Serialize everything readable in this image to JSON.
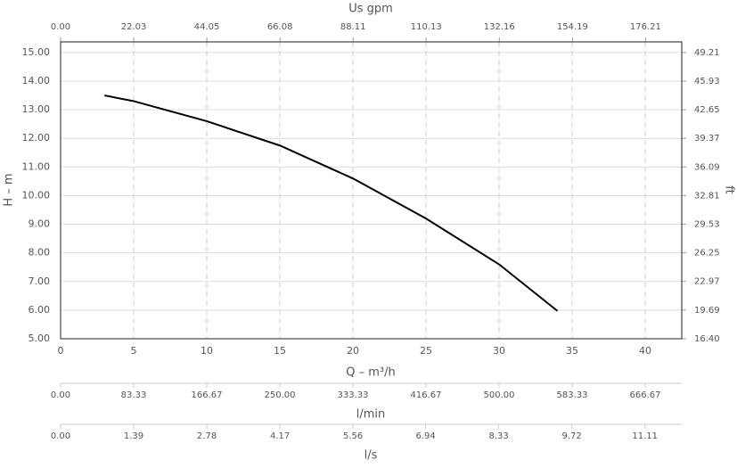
{
  "chart_data": {
    "type": "line",
    "x": [
      3,
      5,
      10,
      15,
      20,
      25,
      30,
      34
    ],
    "values": [
      13.5,
      13.3,
      12.6,
      11.75,
      10.6,
      9.2,
      7.6,
      5.97
    ],
    "color": "#000000",
    "grid": true,
    "xlabel": "Q – m³/h",
    "ylabel": "H – m",
    "xlim": [
      0,
      42.5
    ],
    "xticks": [
      0,
      5,
      10,
      15,
      20,
      25,
      30,
      35,
      40
    ],
    "ylim": [
      5,
      15.37
    ],
    "yticks": [
      {
        "value": 5,
        "label": "5.00"
      },
      {
        "value": 6,
        "label": "6.00"
      },
      {
        "value": 7,
        "label": "7.00"
      },
      {
        "value": 8,
        "label": "8.00"
      },
      {
        "value": 9,
        "label": "9.00"
      },
      {
        "value": 10,
        "label": "10.00"
      },
      {
        "value": 11,
        "label": "11.00"
      },
      {
        "value": 12,
        "label": "12.00"
      },
      {
        "value": 13,
        "label": "13.00"
      },
      {
        "value": 14,
        "label": "14.00"
      },
      {
        "value": 15,
        "label": "15.00"
      }
    ],
    "y2label": "ft",
    "y2lim": [
      16.4,
      50.43
    ],
    "y2ticks": [
      {
        "value": 16.4,
        "label": "16.40"
      },
      {
        "value": 19.69,
        "label": "19.69"
      },
      {
        "value": 22.97,
        "label": "22.97"
      },
      {
        "value": 26.25,
        "label": "26.25"
      },
      {
        "value": 29.53,
        "label": "29.53"
      },
      {
        "value": 32.81,
        "label": "32.81"
      },
      {
        "value": 36.09,
        "label": "36.09"
      },
      {
        "value": 39.37,
        "label": "39.37"
      },
      {
        "value": 42.65,
        "label": "42.65"
      },
      {
        "value": 45.93,
        "label": "45.93"
      },
      {
        "value": 49.21,
        "label": "49.21"
      }
    ],
    "top_axis": {
      "label": "Us gpm",
      "lim": [
        0,
        187.12
      ],
      "ticks": [
        {
          "value": 0,
          "label": "0.00"
        },
        {
          "value": 22.03,
          "label": "22.03"
        },
        {
          "value": 44.05,
          "label": "44.05"
        },
        {
          "value": 66.08,
          "label": "66.08"
        },
        {
          "value": 88.11,
          "label": "88.11"
        },
        {
          "value": 110.13,
          "label": "110.13"
        },
        {
          "value": 132.16,
          "label": "132.16"
        },
        {
          "value": 154.19,
          "label": "154.19"
        },
        {
          "value": 176.21,
          "label": "176.21"
        }
      ]
    },
    "extra_axes": [
      {
        "label": "l/min",
        "lim": [
          0,
          708.33
        ],
        "ticks": [
          {
            "value": 0,
            "label": "0.00"
          },
          {
            "value": 83.33,
            "label": "83.33"
          },
          {
            "value": 166.67,
            "label": "166.67"
          },
          {
            "value": 250,
            "label": "250.00"
          },
          {
            "value": 333.33,
            "label": "333.33"
          },
          {
            "value": 416.67,
            "label": "416.67"
          },
          {
            "value": 500,
            "label": "500.00"
          },
          {
            "value": 583.33,
            "label": "583.33"
          },
          {
            "value": 666.67,
            "label": "666.67"
          }
        ]
      },
      {
        "label": "l/s",
        "lim": [
          0,
          11.81
        ],
        "ticks": [
          {
            "value": 0,
            "label": "0.00"
          },
          {
            "value": 1.39,
            "label": "1.39"
          },
          {
            "value": 2.78,
            "label": "2.78"
          },
          {
            "value": 4.17,
            "label": "4.17"
          },
          {
            "value": 5.56,
            "label": "5.56"
          },
          {
            "value": 6.94,
            "label": "6.94"
          },
          {
            "value": 8.33,
            "label": "8.33"
          },
          {
            "value": 9.72,
            "label": "9.72"
          },
          {
            "value": 11.11,
            "label": "11.11"
          }
        ]
      }
    ]
  }
}
